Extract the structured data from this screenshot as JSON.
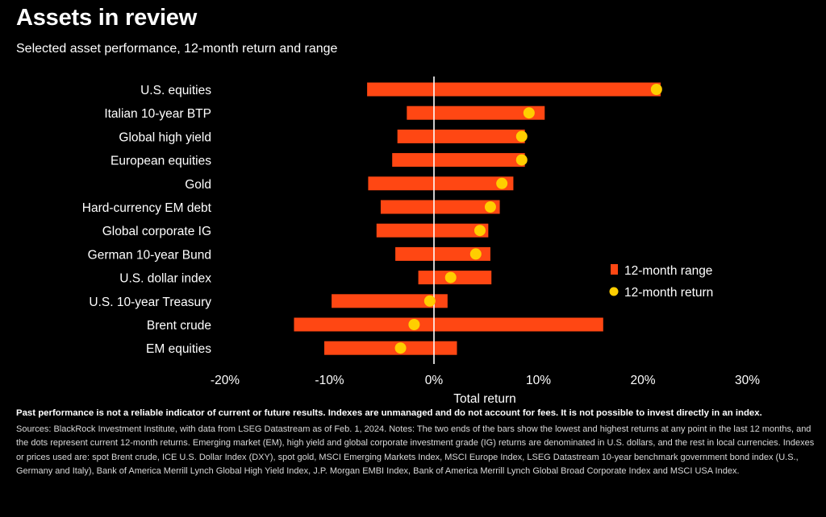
{
  "chart_data": {
    "type": "range-dot",
    "title": "Assets in review",
    "subtitle": "Selected asset performance, 12-month return and range",
    "xlabel": "Total return",
    "xlim": [
      -20,
      30
    ],
    "xticks": [
      -20,
      -10,
      0,
      10,
      20,
      30
    ],
    "tick_suffix": "%",
    "grid": false,
    "legend_position": "right",
    "categories": [
      "U.S. equities",
      "Italian 10-year BTP",
      "Global high yield",
      "European equities",
      "Gold",
      "Hard-currency EM debt",
      "Global corporate IG",
      "German 10-year Bund",
      "U.S. dollar index",
      "U.S. 10-year Treasury",
      "Brent crude",
      "EM equities"
    ],
    "series": [
      {
        "name": "12-month range",
        "color": "#ff4713",
        "low": [
          -6.4,
          -2.6,
          -3.5,
          -4.0,
          -6.3,
          -5.1,
          -5.5,
          -3.7,
          -1.5,
          -9.8,
          -13.4,
          -10.5
        ],
        "high": [
          21.7,
          10.6,
          8.7,
          8.7,
          7.6,
          6.3,
          5.2,
          5.4,
          5.5,
          1.3,
          16.2,
          2.2
        ]
      },
      {
        "name": "12-month return",
        "color": "#ffce00",
        "values": [
          21.3,
          9.1,
          8.4,
          8.4,
          6.5,
          5.4,
          4.4,
          4.0,
          1.6,
          -0.4,
          -1.9,
          -3.2
        ]
      }
    ]
  },
  "notes": {
    "disclaimer": "Past performance is not a reliable indicator of current or future results. Indexes are unmanaged and do not account for fees. It is not possible to invest directly in an index.",
    "sources": "Sources: BlackRock Investment Institute, with data from LSEG Datastream as of Feb. 1, 2024. Notes: The two ends of the bars show the lowest and highest returns at any point in the last 12 months, and the dots represent current 12-month returns. Emerging market (EM), high yield and global corporate investment grade (IG) returns are denominated in U.S. dollars, and the rest in local currencies. Indexes or prices used are: spot Brent crude, ICE U.S. Dollar Index (DXY), spot gold, MSCI Emerging Markets Index, MSCI Europe Index, LSEG Datastream 10-year benchmark government bond index (U.S., Germany and Italy), Bank of America Merrill Lynch Global High Yield Index, J.P. Morgan EMBI Index, Bank of America Merrill Lynch Global Broad Corporate Index and MSCI USA Index."
  }
}
